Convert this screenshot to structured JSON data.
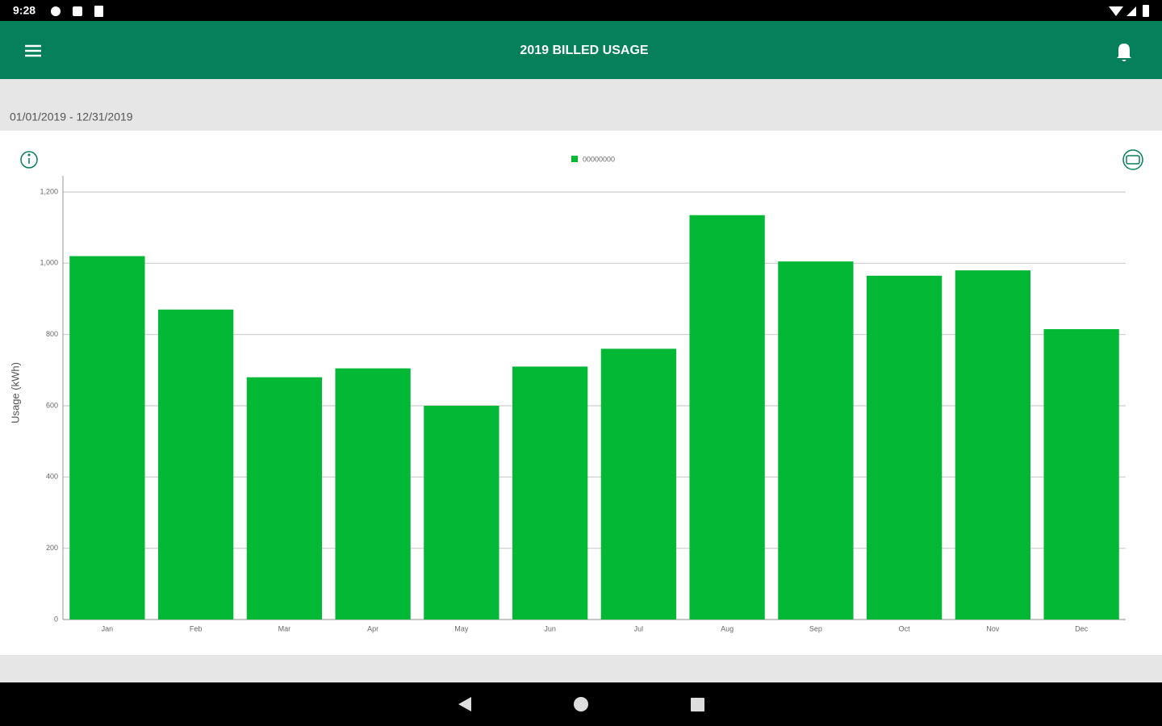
{
  "status_bar": {
    "time": "9:28"
  },
  "header": {
    "title": "2019 BILLED USAGE"
  },
  "date_range": "01/01/2019 - 12/31/2019",
  "chart_data": {
    "type": "bar",
    "y_label": "Usage (kWh)",
    "categories": [
      "Jan",
      "Feb",
      "Mar",
      "Apr",
      "May",
      "Jun",
      "Jul",
      "Aug",
      "Sep",
      "Oct",
      "Nov",
      "Dec"
    ],
    "series": [
      {
        "name": "00000000",
        "color": "#02b834",
        "values": [
          1020,
          870,
          680,
          705,
          600,
          710,
          760,
          1135,
          1005,
          965,
          980,
          815
        ]
      }
    ],
    "ylim": [
      0,
      1200
    ],
    "yticks": [
      0,
      200,
      400,
      600,
      800,
      {
        "value": 1000,
        "label": "1,000"
      },
      {
        "value": 1200,
        "label": "1,200"
      }
    ],
    "grid": true,
    "legend": "top"
  }
}
